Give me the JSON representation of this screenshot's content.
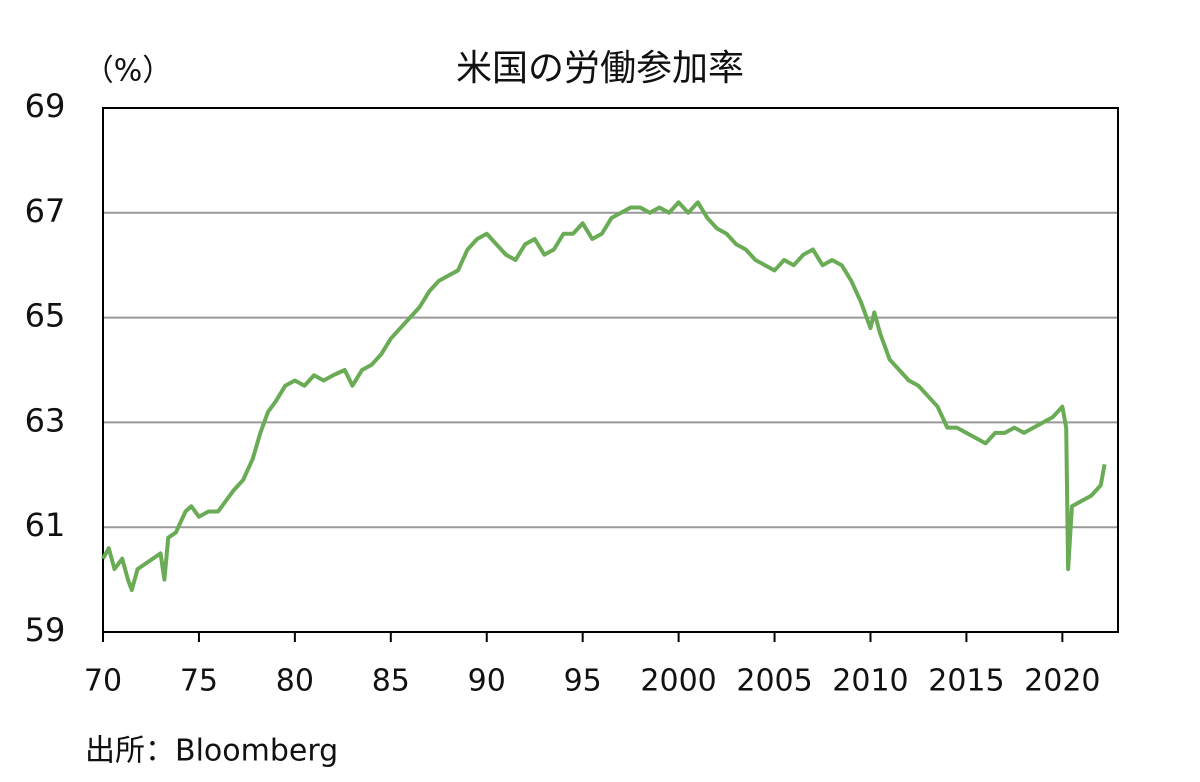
{
  "chart_data": {
    "type": "line",
    "title": "米国の労働参加率",
    "y_unit_label": "（%）",
    "source": "出所：Bloomberg",
    "x": [
      1970.0,
      1970.3,
      1970.6,
      1971.0,
      1971.3,
      1971.5,
      1971.8,
      1972.2,
      1972.6,
      1973.0,
      1973.2,
      1973.4,
      1973.8,
      1974.3,
      1974.6,
      1975.0,
      1975.5,
      1976.0,
      1976.4,
      1976.8,
      1977.3,
      1977.8,
      1978.2,
      1978.6,
      1979.0,
      1979.5,
      1980.0,
      1980.5,
      1981.0,
      1981.5,
      1982.0,
      1982.6,
      1983.0,
      1983.5,
      1984.0,
      1984.5,
      1985.0,
      1985.5,
      1986.0,
      1986.5,
      1987.0,
      1987.5,
      1988.0,
      1988.5,
      1989.0,
      1989.5,
      1990.0,
      1990.5,
      1991.0,
      1991.5,
      1992.0,
      1992.5,
      1993.0,
      1993.5,
      1994.0,
      1994.5,
      1995.0,
      1995.5,
      1996.0,
      1996.5,
      1997.0,
      1997.5,
      1998.0,
      1998.5,
      1999.0,
      1999.5,
      2000.0,
      2000.5,
      2001.0,
      2001.5,
      2002.0,
      2002.5,
      2003.0,
      2003.5,
      2004.0,
      2004.5,
      2005.0,
      2005.5,
      2006.0,
      2006.5,
      2007.0,
      2007.5,
      2008.0,
      2008.5,
      2009.0,
      2009.5,
      2010.0,
      2010.2,
      2010.5,
      2011.0,
      2011.5,
      2012.0,
      2012.5,
      2013.0,
      2013.5,
      2014.0,
      2014.5,
      2015.0,
      2015.5,
      2016.0,
      2016.5,
      2017.0,
      2017.5,
      2018.0,
      2018.5,
      2019.0,
      2019.5,
      2020.0,
      2020.2,
      2020.3,
      2020.5,
      2021.0,
      2021.5,
      2022.0,
      2022.2
    ],
    "series": [
      {
        "name": "労働参加率",
        "color": "#6aab55",
        "values": [
          60.4,
          60.6,
          60.2,
          60.4,
          60.0,
          59.8,
          60.2,
          60.3,
          60.4,
          60.5,
          60.0,
          60.8,
          60.9,
          61.3,
          61.4,
          61.2,
          61.3,
          61.3,
          61.5,
          61.7,
          61.9,
          62.3,
          62.8,
          63.2,
          63.4,
          63.7,
          63.8,
          63.7,
          63.9,
          63.8,
          63.9,
          64.0,
          63.7,
          64.0,
          64.1,
          64.3,
          64.6,
          64.8,
          65.0,
          65.2,
          65.5,
          65.7,
          65.8,
          65.9,
          66.3,
          66.5,
          66.6,
          66.4,
          66.2,
          66.1,
          66.4,
          66.5,
          66.2,
          66.3,
          66.6,
          66.6,
          66.8,
          66.5,
          66.6,
          66.9,
          67.0,
          67.1,
          67.1,
          67.0,
          67.1,
          67.0,
          67.2,
          67.0,
          67.2,
          66.9,
          66.7,
          66.6,
          66.4,
          66.3,
          66.1,
          66.0,
          65.9,
          66.1,
          66.0,
          66.2,
          66.3,
          66.0,
          66.1,
          66.0,
          65.7,
          65.3,
          64.8,
          65.1,
          64.7,
          64.2,
          64.0,
          63.8,
          63.7,
          63.5,
          63.3,
          62.9,
          62.9,
          62.8,
          62.7,
          62.6,
          62.8,
          62.8,
          62.9,
          62.8,
          62.9,
          63.0,
          63.1,
          63.3,
          62.9,
          60.2,
          61.4,
          61.5,
          61.6,
          61.8,
          62.2
        ]
      }
    ],
    "xlim": [
      1970,
      2022.9
    ],
    "xticks": [
      {
        "value": 1970,
        "label": "70"
      },
      {
        "value": 1975,
        "label": "75"
      },
      {
        "value": 1980,
        "label": "80"
      },
      {
        "value": 1985,
        "label": "85"
      },
      {
        "value": 1990,
        "label": "90"
      },
      {
        "value": 1995,
        "label": "95"
      },
      2000,
      2005,
      2010,
      2015,
      2020
    ],
    "ylim": [
      59,
      69
    ],
    "yticks": [
      59,
      61,
      63,
      65,
      67,
      69
    ],
    "grid": true
  }
}
